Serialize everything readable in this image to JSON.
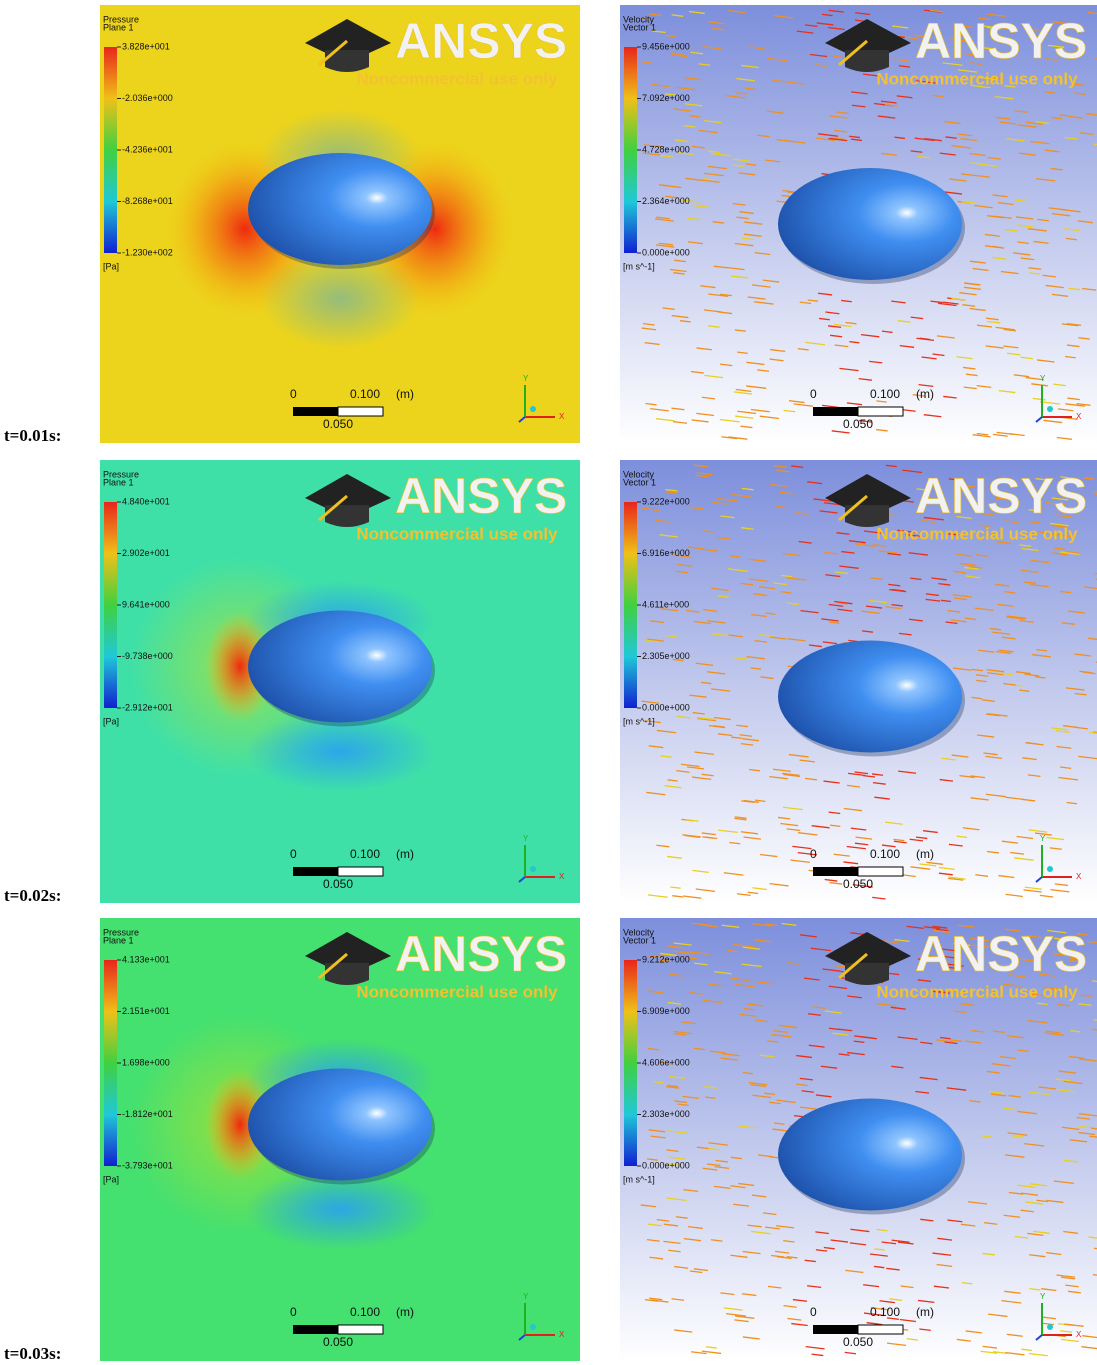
{
  "rows": [
    {
      "time_label": "t=0.01s:",
      "pressure": {
        "title": "Pressure",
        "subtitle": "Plane 1",
        "levels": [
          "3.828e+001",
          "-2.036e+000",
          "-4.236e+001",
          "-8.268e+001",
          "-1.230e+002"
        ],
        "unit": "[Pa]"
      },
      "velocity": {
        "title": "Velocity",
        "subtitle": "Vector 1",
        "levels": [
          "9.456e+000",
          "7.092e+000",
          "4.728e+000",
          "2.364e+000",
          "0.000e+000"
        ],
        "unit": "[m s^-1]"
      }
    },
    {
      "time_label": "t=0.02s:",
      "pressure": {
        "title": "Pressure",
        "subtitle": "Plane 1",
        "levels": [
          "4.840e+001",
          "2.902e+001",
          "9.641e+000",
          "-9.738e+000",
          "-2.912e+001"
        ],
        "unit": "[Pa]"
      },
      "velocity": {
        "title": "Velocity",
        "subtitle": "Vector 1",
        "levels": [
          "9.222e+000",
          "6.916e+000",
          "4.611e+000",
          "2.305e+000",
          "0.000e+000"
        ],
        "unit": "[m s^-1]"
      }
    },
    {
      "time_label": "t=0.03s:",
      "pressure": {
        "title": "Pressure",
        "subtitle": "Plane 1",
        "levels": [
          "4.133e+001",
          "2.151e+001",
          "1.698e+000",
          "-1.812e+001",
          "-3.793e+001"
        ],
        "unit": "[Pa]"
      },
      "velocity": {
        "title": "Velocity",
        "subtitle": "Vector 1",
        "levels": [
          "9.212e+000",
          "6.909e+000",
          "4.606e+000",
          "2.303e+000",
          "0.000e+000"
        ],
        "unit": "[m s^-1]"
      }
    }
  ],
  "logo": {
    "brand": "ANSYS",
    "note": "Noncommercial use only"
  },
  "scale_bar": {
    "start": "0",
    "end": "0.100",
    "unit": "(m)",
    "middle": "0.050"
  },
  "axes": {
    "x": "X",
    "y": "Y"
  }
}
